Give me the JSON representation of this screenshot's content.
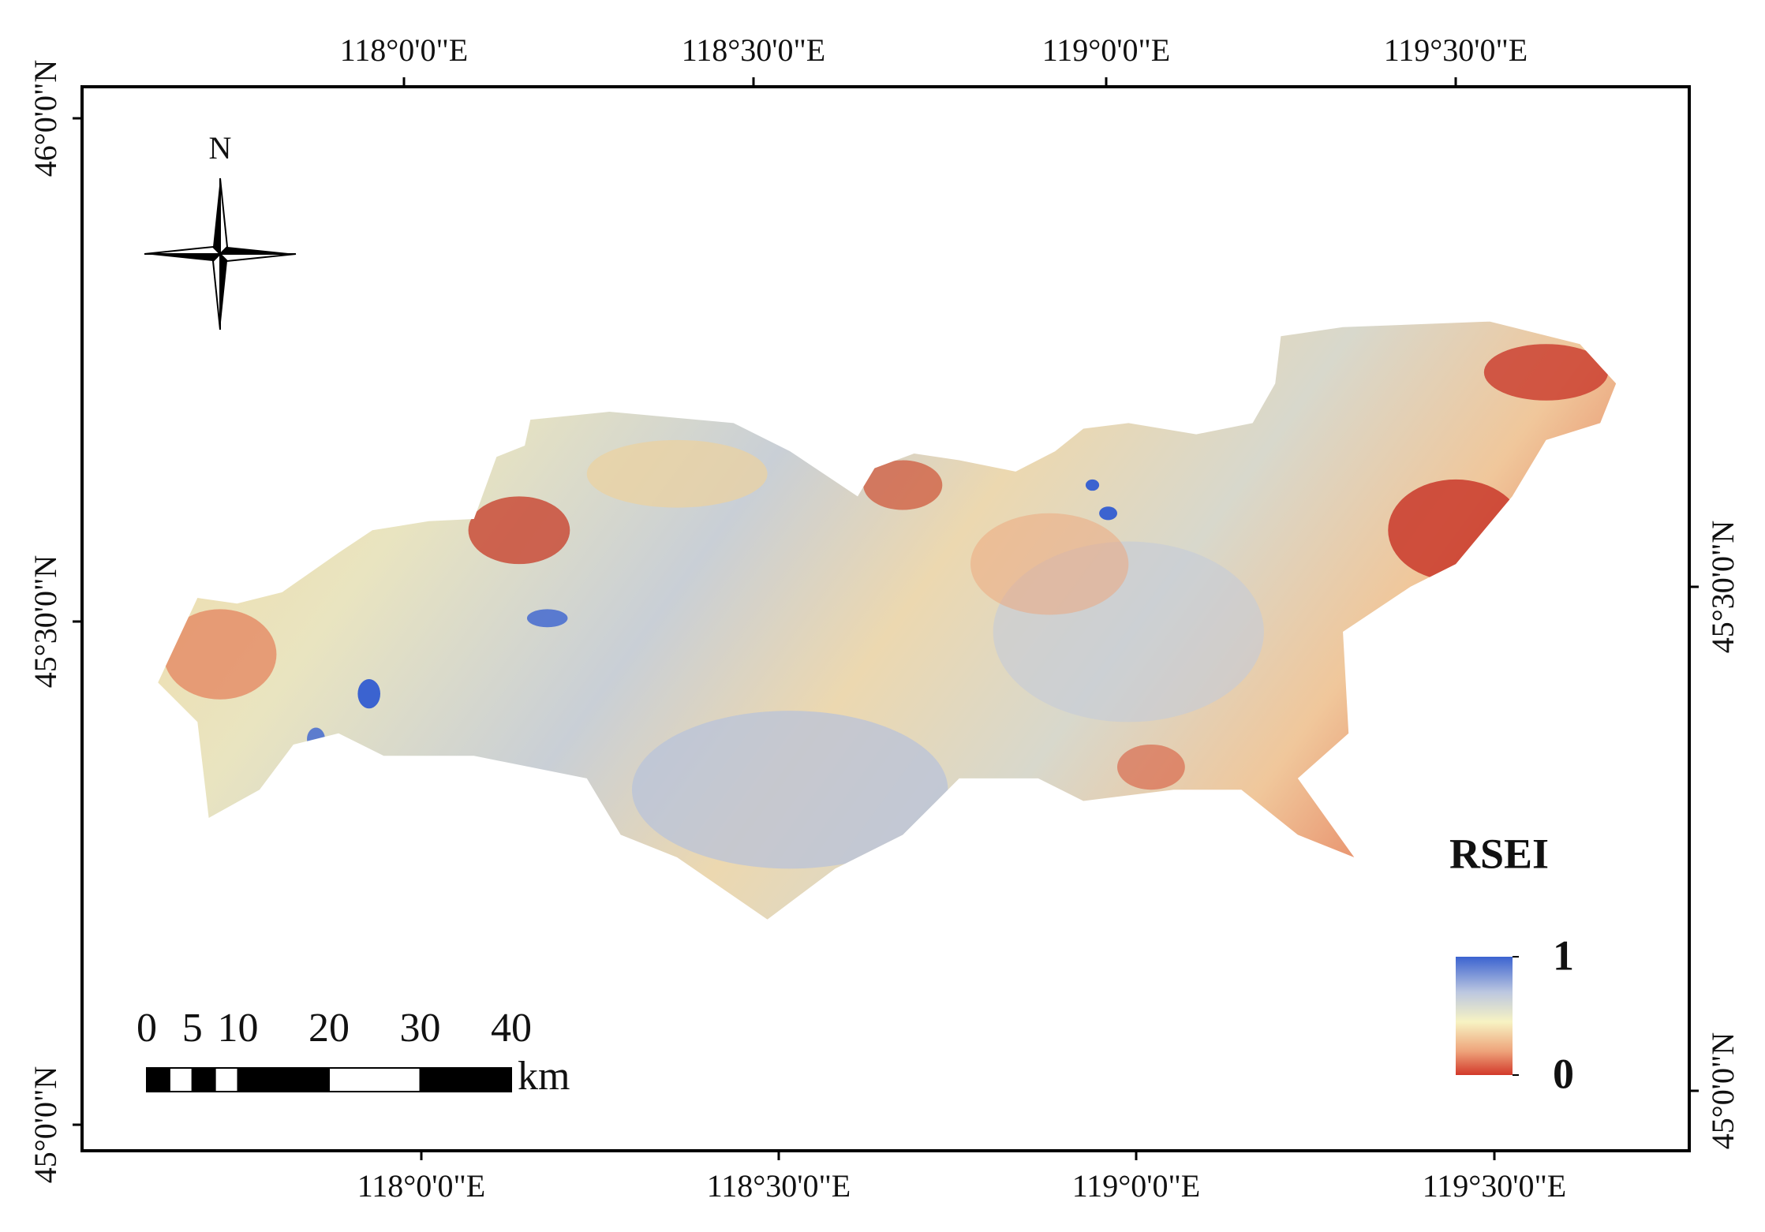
{
  "map": {
    "top_labels": [
      "118°0'0\"E",
      "118°30'0\"E",
      "119°0'0\"E",
      "119°30'0\"E"
    ],
    "bottom_labels": [
      "118°0'0\"E",
      "118°30'0\"E",
      "119°0'0\"E",
      "119°30'0\"E"
    ],
    "left_labels": [
      "46°0'0\"N",
      "45°30'0\"N",
      "45°0'0\"N"
    ],
    "right_labels": [
      "45°30'0\"N",
      "45°0'0\"N"
    ],
    "north": "N",
    "scale_bar": {
      "ticks": [
        0,
        5,
        10,
        20,
        30,
        40
      ],
      "unit": "km"
    },
    "legend": {
      "title": "RSEI",
      "max": 1,
      "min": 0
    }
  }
}
